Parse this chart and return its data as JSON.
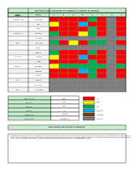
{
  "title": "MATRIZ DE VALORACIÓN DE IMPACTO AMBIENTAL LAVANDERÍA EL MORICHAL",
  "title_bg": "#c6efce",
  "header_bg": "#c6efce",
  "main_table": {
    "activities": [
      "A",
      "B",
      "C",
      "D",
      "E",
      "F",
      "G",
      "H"
    ],
    "row_groups": [
      {
        "group": "CALIDAD DEL AIRE",
        "rows": [
          {
            "label": "Emis. gases",
            "colors": [
              "#ff0000",
              "#ff0000",
              "#ff0000",
              "#ff0000",
              "#00b050",
              "#ff0000",
              "#808080",
              "#ff0000"
            ]
          },
          {
            "label": "Ruido",
            "colors": [
              "#ffff00",
              "#ff0000",
              "#ff0000",
              "#00b0f0",
              "#ff0000",
              "#ff0000",
              "#808080",
              "#ff0000"
            ]
          },
          {
            "label": "Olores",
            "colors": [
              "#ff0000",
              "#ff0000",
              "#ff0000",
              "#ff0000",
              "#00b050",
              "#ff0000",
              "#808080",
              "#ff0000"
            ]
          }
        ]
      },
      {
        "group": "CALIDAD AGUA",
        "rows": [
          {
            "label": "Vertimientos",
            "colors": [
              "#00b050",
              "#ff0000",
              "#ff0000",
              "#ffff00",
              "#00b050",
              "#ff0000",
              "#808080",
              "#ff0000"
            ]
          },
          {
            "label": "Ag. subterr.",
            "colors": [
              "#808080",
              "#808080",
              "#808080",
              "#808080",
              "#808080",
              "#808080",
              "#808080",
              "#808080"
            ]
          }
        ]
      },
      {
        "group": "SUELO",
        "rows": [
          {
            "label": "Res. sólidos",
            "colors": [
              "#00b050",
              "#ff0000",
              "#ffff00",
              "#ff0000",
              "#00b050",
              "#00b050",
              "#808080",
              "#ff0000"
            ]
          },
          {
            "label": "Erosión",
            "colors": [
              "#808080",
              "#808080",
              "#808080",
              "#808080",
              "#808080",
              "#808080",
              "#808080",
              "#808080"
            ]
          },
          {
            "label": "Contaminac.",
            "colors": [
              "#00b050",
              "#ff0000",
              "#ff0000",
              "#ff0000",
              "#00b050",
              "#ff0000",
              "#808080",
              "#ff0000"
            ]
          }
        ]
      },
      {
        "group": "CAL. SUELO",
        "rows": [
          {
            "label": "Uso suelo",
            "colors": [
              "#ffff00",
              "#ff0000",
              "#ff0000",
              "#00b0f0",
              "#ff0000",
              "#ff0000",
              "#808080",
              "#ff0000"
            ]
          },
          {
            "label": "Paisaje",
            "colors": [
              "#ff0000",
              "#ff0000",
              "#ff0000",
              "#ff0000",
              "#00b050",
              "#ff0000",
              "#808080",
              "#ff0000"
            ]
          }
        ]
      },
      {
        "group": "COMUNIDAD",
        "rows": [
          {
            "label": "Gen. empleo",
            "colors": [
              "#ffff00",
              "#00b050",
              "#00b050",
              "#00b050",
              "#00b050",
              "#00b050",
              "#808080",
              "#00b050"
            ]
          },
          {
            "label": "Salud/segur.",
            "colors": [
              "#ff0000",
              "#ff0000",
              "#ff0000",
              "#00b0f0",
              "#00b050",
              "#ff0000",
              "#808080",
              "#ff0000"
            ]
          },
          {
            "label": "Molestias",
            "colors": [
              "#ff0000",
              "#ff0000",
              "#ff0000",
              "#ff0000",
              "#00b050",
              "#ff0000",
              "#808080",
              "#ff0000"
            ]
          }
        ]
      },
      {
        "group": "FLORA",
        "rows": [
          {
            "label": "Vegetación",
            "colors": [
              "#808080",
              "#808080",
              "#808080",
              "#808080",
              "#808080",
              "#808080",
              "#808080",
              "#808080"
            ]
          },
          {
            "label": "Cob. vegetal",
            "colors": [
              "#808080",
              "#808080",
              "#808080",
              "#808080",
              "#808080",
              "#808080",
              "#808080",
              "#808080"
            ]
          }
        ]
      },
      {
        "group": "FAUNA",
        "rows": [
          {
            "label": "Afect. fauna",
            "colors": [
              "#808080",
              "#808080",
              "#808080",
              "#808080",
              "#808080",
              "#808080",
              "#808080",
              "#808080"
            ]
          }
        ]
      }
    ]
  },
  "legend_items": [
    {
      "color": "#ff0000",
      "label": "ALTO"
    },
    {
      "color": "#ffff00",
      "label": "MEDIO"
    },
    {
      "color": "#00b050",
      "label": "BAJO"
    },
    {
      "color": "#00b0f0",
      "label": "MUY BAJO"
    },
    {
      "color": "#7f3f00",
      "label": "COMPATIBLE"
    },
    {
      "color": "#808080",
      "label": "NO APLICA"
    }
  ],
  "summary_labels": [
    "TIPO DE IMPACTO",
    "FRECUENCIA",
    "COBERTURA",
    "MAGNITUD",
    "REVERSIBILIDAD",
    "SUSTENTABILIDAD"
  ],
  "summary_values": [
    "Negativo",
    "100%",
    "100%",
    "Alta",
    "Irreversible",
    "No sustentable"
  ],
  "bg_color": "#ffffff",
  "text_color_dark": "#000000",
  "grid_line_color": "#000000",
  "description_title": "RESULTADOS DE IMPACTO AMBIENTAL",
  "description_text": "Con base en la valoracion de los impactos ambientales generados por las actividades de la lavanderia El Morichal, se identificaron impactos de caracter negativo en los componentes de aire, agua y suelo. Los impactos de mayor relevancia corresponden a la generacion de vertimientos con alta carga contaminante y emisiones de material particulado. Se recomienda implementar medidas de manejo ambiental para reducir y controlar los impactos identificados, con el fin de minimizar la afectacion sobre los recursos naturales y la comunidad en general."
}
